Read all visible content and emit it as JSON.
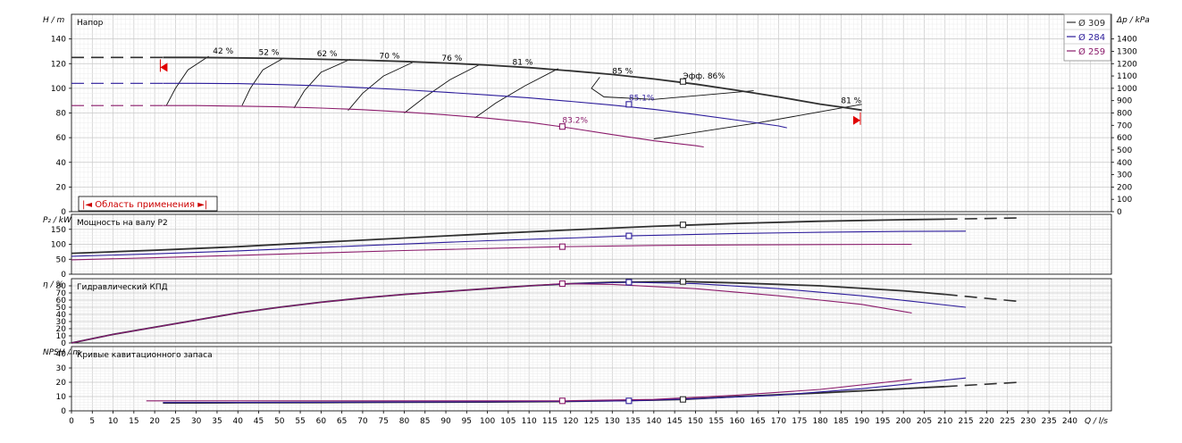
{
  "chart_data": {
    "type": "line",
    "x_axis": {
      "label": "Q / l/s",
      "range": [
        0,
        250
      ],
      "ticks": [
        0,
        5,
        10,
        15,
        20,
        25,
        30,
        35,
        40,
        45,
        50,
        55,
        60,
        65,
        70,
        75,
        80,
        85,
        90,
        95,
        100,
        105,
        110,
        115,
        120,
        125,
        130,
        135,
        140,
        145,
        150,
        155,
        160,
        165,
        170,
        175,
        180,
        185,
        190,
        195,
        200,
        205,
        210,
        215,
        220,
        225,
        230,
        235,
        240
      ]
    },
    "colors": {
      "d309": "#303030",
      "d284": "#2b1b9a",
      "d259": "#8a1a6a",
      "accent": "#e00000",
      "grid": "#d4d4d4"
    },
    "legend": [
      {
        "key": "d309",
        "label": "Ø 309"
      },
      {
        "key": "d284",
        "label": "Ø 284"
      },
      {
        "key": "d259",
        "label": "Ø 259"
      }
    ],
    "range_label": "|◄ Область применения ►|",
    "panels": [
      {
        "id": "head",
        "title": "Напор",
        "ylabel": "H / m",
        "ylim": [
          0,
          160
        ],
        "yticks": [
          0,
          20,
          40,
          60,
          80,
          100,
          120,
          140
        ],
        "y2label": "Δp / kPa",
        "y2ticks": [
          0,
          100,
          200,
          300,
          400,
          500,
          600,
          700,
          800,
          900,
          1000,
          1100,
          1200,
          1300,
          1400
        ],
        "series": [
          {
            "key": "d309",
            "dashed_x": [
              0,
              22
            ],
            "x": [
              22,
              30,
              40,
              50,
              60,
              70,
              80,
              90,
              100,
              110,
              120,
              130,
              140,
              150,
              160,
              170,
              180,
              185,
              190
            ],
            "y": [
              125,
              125,
              124.7,
              124.2,
              123.5,
              122.8,
              121.8,
              120.5,
              118.8,
              116.8,
              114.2,
              111.2,
              107.6,
              103.4,
              98.4,
              93,
              87.2,
              84.8,
              82.3
            ]
          },
          {
            "key": "d284",
            "dashed_x": [
              0,
              22
            ],
            "x": [
              22,
              30,
              40,
              50,
              60,
              70,
              80,
              90,
              100,
              110,
              120,
              130,
              134,
              140,
              150,
              160,
              170,
              172
            ],
            "y": [
              104,
              104,
              103.8,
              103,
              102,
              100.5,
              98.8,
              96.8,
              94.6,
              92.2,
              89.4,
              86.4,
              85,
              83,
              78.8,
              74.2,
              69.5,
              68
            ]
          },
          {
            "key": "d259",
            "dashed_x": [
              0,
              22
            ],
            "x": [
              22,
              30,
              40,
              50,
              60,
              70,
              80,
              90,
              100,
              110,
              118,
              130,
              140,
              150,
              152
            ],
            "y": [
              86,
              86,
              85.6,
              85,
              84,
              82.7,
              80.8,
              78.5,
              75.8,
              72.5,
              68.8,
              62.5,
              57.5,
              53.5,
              52.5
            ]
          }
        ],
        "markers": [
          {
            "key": "d309",
            "x": 147,
            "y": 105.5
          },
          {
            "key": "d284",
            "x": 134,
            "y": 87
          },
          {
            "key": "d259",
            "x": 118,
            "y": 69
          }
        ],
        "efficiency_labels": [
          {
            "text": "42 %",
            "x": 34,
            "y": 128
          },
          {
            "text": "52 %",
            "x": 45,
            "y": 127
          },
          {
            "text": "62 %",
            "x": 59,
            "y": 126
          },
          {
            "text": "70 %",
            "x": 74,
            "y": 124
          },
          {
            "text": "76 %",
            "x": 89,
            "y": 122.5
          },
          {
            "text": "81 %",
            "x": 106,
            "y": 119
          },
          {
            "text": "85 %",
            "x": 130,
            "y": 112
          },
          {
            "text": "Эфф. 86%",
            "x": 147,
            "y": 108
          },
          {
            "text": "85.1%",
            "x": 134,
            "y": 90
          },
          {
            "text": "83.2%",
            "x": 118,
            "y": 72
          },
          {
            "text": "81 %",
            "x": 185,
            "y": 88
          }
        ],
        "iso_lines": [
          {
            "x": [
              22.8,
              25,
              28,
              33
            ],
            "y": [
              86,
              100,
              115,
              126
            ]
          },
          {
            "x": [
              41,
              43,
              46,
              51
            ],
            "y": [
              86,
              100,
              115,
              124.5
            ]
          },
          {
            "x": [
              53.5,
              56,
              60,
              67
            ],
            "y": [
              84,
              98,
              113,
              123.5
            ]
          },
          {
            "x": [
              66.5,
              70,
              75,
              82
            ],
            "y": [
              82,
              96,
              110,
              121
            ]
          },
          {
            "x": [
              80,
              85,
              91,
              98
            ],
            "y": [
              80,
              93,
              107,
              119
            ]
          },
          {
            "x": [
              97,
              102,
              109,
              117
            ],
            "y": [
              76,
              88,
              102,
              116
            ]
          },
          {
            "x": [
              127,
              125,
              128,
              140,
              164
            ],
            "y": [
              109,
              100,
              93,
              91,
              98
            ]
          },
          {
            "x": [
              140,
              165,
              190
            ],
            "y": [
              59,
              72,
              87
            ]
          }
        ],
        "range_markers": [
          {
            "x": 22,
            "y": 117
          },
          {
            "x": 189,
            "y": 74
          }
        ]
      },
      {
        "id": "power",
        "title": "Мощность на валу P2",
        "ylabel": "P₂ / kW",
        "ylim": [
          0,
          200
        ],
        "yticks": [
          0,
          50,
          100,
          150
        ],
        "series": [
          {
            "key": "d309",
            "x": [
              0,
              20,
              40,
              60,
              80,
              100,
              120,
              140,
              160,
              180,
              200,
              210
            ],
            "y": [
              70,
              80,
              92,
              107,
              121,
              135,
              148,
              160,
              170,
              177,
              182,
              184
            ],
            "dashed_x": [
              210,
              228
            ],
            "dashed_y": [
              184,
              188
            ]
          },
          {
            "key": "d284",
            "x": [
              0,
              20,
              40,
              60,
              80,
              100,
              120,
              134,
              160,
              180,
              200,
              215
            ],
            "y": [
              60,
              68,
              78,
              90,
              101,
              112,
              121,
              128,
              136,
              140,
              143,
              144
            ]
          },
          {
            "key": "d259",
            "x": [
              0,
              20,
              40,
              60,
              80,
              100,
              118,
              140,
              160,
              180,
              202
            ],
            "y": [
              48,
              55,
              63,
              71,
              79,
              86,
              92,
              96,
              98,
              99,
              100
            ]
          }
        ],
        "markers": [
          {
            "key": "d309",
            "x": 147,
            "y": 165
          },
          {
            "key": "d284",
            "x": 134,
            "y": 128
          },
          {
            "key": "d259",
            "x": 118,
            "y": 92
          }
        ]
      },
      {
        "id": "efficiency",
        "title": "Гидравлический КПД",
        "ylabel": "η / %",
        "ylim": [
          0,
          90
        ],
        "yticks": [
          0,
          10,
          20,
          30,
          40,
          50,
          60,
          70,
          80
        ],
        "series": [
          {
            "key": "d309",
            "x": [
              0,
              10,
              20,
              30,
              40,
              50,
              60,
              70,
              80,
              90,
              100,
              110,
              120,
              130,
              147,
              160,
              180,
              200,
              210
            ],
            "y": [
              0,
              12,
              22,
              32,
              42,
              50,
              57,
              63,
              68,
              72,
              76,
              80,
              83,
              85,
              86,
              84,
              80,
              73,
              68
            ],
            "dashed_x": [
              210,
              228
            ],
            "dashed_y": [
              68,
              58
            ]
          },
          {
            "key": "d284",
            "x": [
              0,
              10,
              20,
              30,
              40,
              50,
              60,
              70,
              80,
              90,
              100,
              110,
              120,
              134,
              150,
              170,
              190,
              215
            ],
            "y": [
              0,
              12,
              22,
              32,
              42,
              50,
              57,
              63,
              68,
              72,
              76,
              80,
              83,
              85,
              83,
              76,
              66,
              50
            ]
          },
          {
            "key": "d259",
            "x": [
              0,
              10,
              20,
              30,
              40,
              50,
              60,
              70,
              80,
              90,
              100,
              110,
              118,
              130,
              150,
              170,
              190,
              202
            ],
            "y": [
              0,
              12,
              22,
              32,
              42,
              50,
              57,
              63,
              68,
              72,
              76,
              80,
              83,
              82,
              76,
              66,
              54,
              42
            ]
          }
        ],
        "markers": [
          {
            "key": "d309",
            "x": 147,
            "y": 86
          },
          {
            "key": "d284",
            "x": 134,
            "y": 85
          },
          {
            "key": "d259",
            "x": 118,
            "y": 83
          }
        ]
      },
      {
        "id": "npsh",
        "title": "Кривые кавитационного запаса",
        "ylabel": "NPSH / m",
        "ylim": [
          0,
          45
        ],
        "yticks": [
          0,
          10,
          20,
          30,
          40
        ],
        "series": [
          {
            "key": "d309",
            "x": [
              22,
              40,
              60,
              80,
              100,
              120,
              140,
              147,
              160,
              180,
              200,
              210
            ],
            "y": [
              5.5,
              5.7,
              5.8,
              6,
              6.2,
              6.6,
              7.5,
              8,
              10,
              12.5,
              15.5,
              17
            ],
            "dashed_x": [
              210,
              228
            ],
            "dashed_y": [
              17,
              20
            ]
          },
          {
            "key": "d284",
            "x": [
              22,
              40,
              60,
              80,
              100,
              120,
              134,
              150,
              170,
              190,
              215
            ],
            "y": [
              5.8,
              5.9,
              6,
              6.2,
              6.4,
              6.7,
              7,
              8.5,
              11,
              15.5,
              23
            ]
          },
          {
            "key": "d259",
            "x": [
              18,
              40,
              60,
              80,
              100,
              118,
              140,
              160,
              180,
              202
            ],
            "y": [
              7,
              7,
              7,
              7,
              7,
              7,
              8,
              11,
              15,
              22
            ]
          }
        ],
        "markers": [
          {
            "key": "d309",
            "x": 147,
            "y": 8
          },
          {
            "key": "d284",
            "x": 134,
            "y": 7
          },
          {
            "key": "d259",
            "x": 118,
            "y": 7
          }
        ]
      }
    ]
  }
}
